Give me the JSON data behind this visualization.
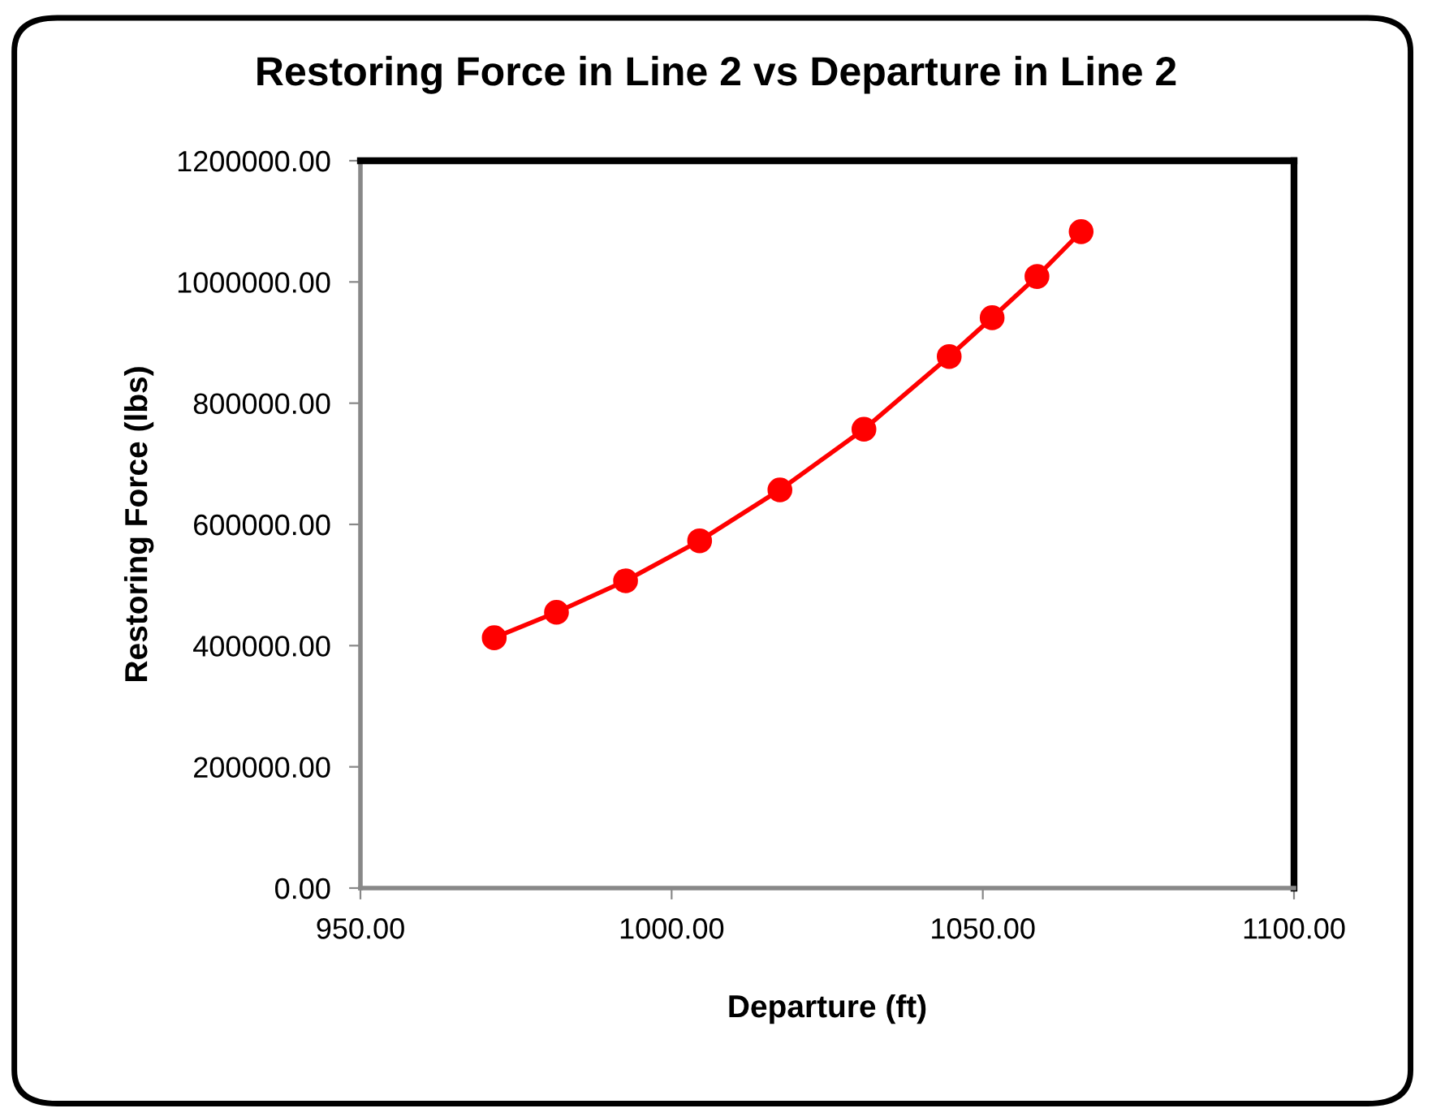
{
  "chart_data": {
    "type": "line",
    "title": "Restoring Force in Line 2 vs Departure in Line 2",
    "xlabel": "Departure (ft)",
    "ylabel": "Restoring Force (lbs)",
    "series": [
      {
        "color": "#ff0000",
        "x": [
          971.5,
          981.5,
          992.6,
          1004.5,
          1017.4,
          1030.9,
          1044.6,
          1051.5,
          1058.7,
          1065.8
        ],
        "values": [
          413000,
          455000,
          507000,
          573000,
          657000,
          757000,
          877000,
          941000,
          1009000,
          1083000
        ]
      }
    ],
    "marker": "circle",
    "line_style": "solid",
    "grid": false,
    "xlim": [
      950,
      1100
    ],
    "xticks": [
      {
        "value": 950,
        "label": "950.00"
      },
      {
        "value": 1000,
        "label": "1000.00"
      },
      {
        "value": 1050,
        "label": "1050.00"
      },
      {
        "value": 1100,
        "label": "1100.00"
      }
    ],
    "ylim": [
      0,
      1200000
    ],
    "yticks": [
      {
        "value": 0,
        "label": "0.00"
      },
      {
        "value": 200000,
        "label": "200000.00"
      },
      {
        "value": 400000,
        "label": "400000.00"
      },
      {
        "value": 600000,
        "label": "600000.00"
      },
      {
        "value": 800000,
        "label": "800000.00"
      },
      {
        "value": 1000000,
        "label": "1000000.00"
      },
      {
        "value": 1200000,
        "label": "1200000.00"
      }
    ]
  }
}
